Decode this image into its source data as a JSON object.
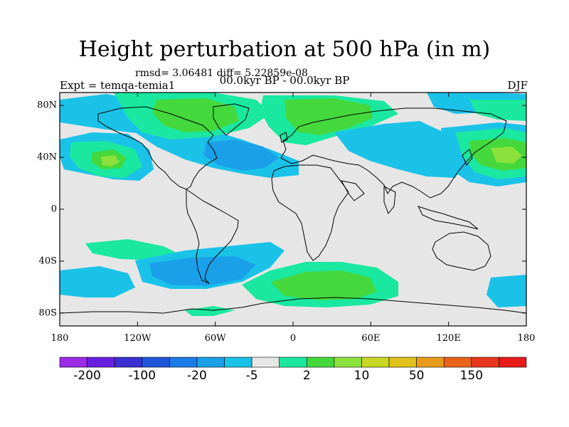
{
  "title": "Height perturbation at 500 hPa (in m)",
  "stats": "rmsd= 3.06481 diff= 5.22859e-08",
  "left_label": "Expt = temqa-temia1",
  "center_label": "00.0kyr BP - 00.0kyr BP",
  "right_label": "DJF",
  "x_ticks": [
    "180",
    "120W",
    "60W",
    "0",
    "60E",
    "120E",
    "180"
  ],
  "y_ticks": [
    "80N",
    "40N",
    "0",
    "40S",
    "80S"
  ],
  "colorbar": {
    "colors": [
      "#9a2be6",
      "#6a1fe0",
      "#3a2fd0",
      "#1f55d8",
      "#1a7ce6",
      "#1aa0e8",
      "#1ac2e8",
      "#e6e6e6",
      "#1ae8a0",
      "#44d83c",
      "#8ce03c",
      "#c8d820",
      "#e0c21a",
      "#e89a1a",
      "#e8641a",
      "#e8361a",
      "#e81a1a"
    ],
    "labels": [
      "-200",
      "-100",
      "-20",
      "-5",
      "2",
      "10",
      "50",
      "150"
    ]
  },
  "field_colors": {
    "background": "#e6e6e6",
    "light_blue": "#1ac2e8",
    "mid_blue": "#1aa0e8",
    "blue": "#1a7ce6",
    "light_green": "#1ae8a0",
    "green": "#44d83c",
    "yellow_green": "#8ce03c"
  }
}
